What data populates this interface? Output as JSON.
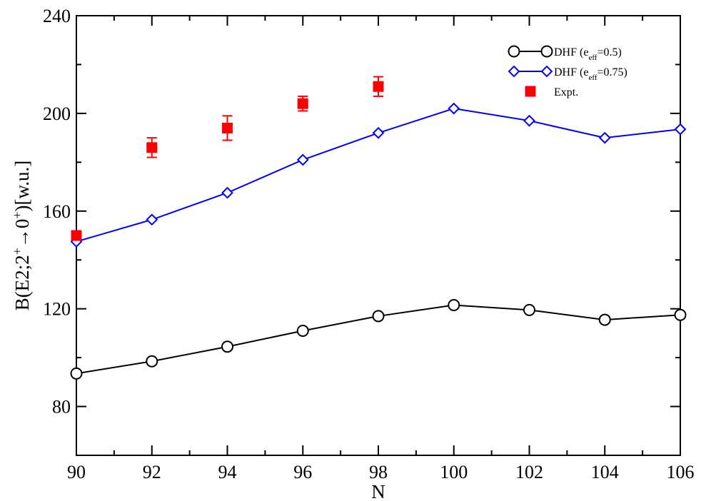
{
  "chart_data": {
    "type": "line",
    "title": "",
    "xlabel": "N",
    "ylabel": {
      "base": "B(E2;2",
      "sup1": "+",
      "arrow": "→",
      "mid": "0",
      "sup2": "+",
      "tail": ")[w.u.]"
    },
    "xlim": [
      90,
      106
    ],
    "ylim": [
      60,
      240
    ],
    "x_ticks": [
      90,
      92,
      94,
      96,
      98,
      100,
      102,
      104,
      106
    ],
    "y_ticks": [
      80,
      120,
      160,
      200,
      240
    ],
    "x": [
      90,
      92,
      94,
      96,
      98,
      100,
      102,
      104,
      106
    ],
    "series": [
      {
        "name": "DHF (e_eff=0.5)",
        "legend": {
          "prefix": "DHF (e",
          "sub": "eff",
          "suffix": "=0.5)"
        },
        "color": "#000000",
        "marker": "circle",
        "values": [
          93.5,
          98.5,
          104.5,
          111,
          117,
          121.5,
          119.5,
          115.5,
          117.5
        ]
      },
      {
        "name": "DHF (e_eff=0.75)",
        "legend": {
          "prefix": "DHF (e",
          "sub": "eff",
          "suffix": "=0.75)"
        },
        "color": "#0000ff",
        "marker": "diamond",
        "values": [
          147.5,
          156.5,
          167.5,
          181,
          192,
          202,
          197,
          190,
          193.5
        ]
      },
      {
        "name": "Expt.",
        "legend": {
          "prefix": "Expt.",
          "sub": "",
          "suffix": ""
        },
        "color": "#ff0000",
        "marker": "square",
        "x": [
          90,
          92,
          94,
          96,
          98
        ],
        "values": [
          150,
          186,
          194,
          204,
          211
        ],
        "errors": [
          0,
          4,
          5,
          3,
          4
        ]
      }
    ],
    "legend_position": "top-right",
    "grid": false
  }
}
